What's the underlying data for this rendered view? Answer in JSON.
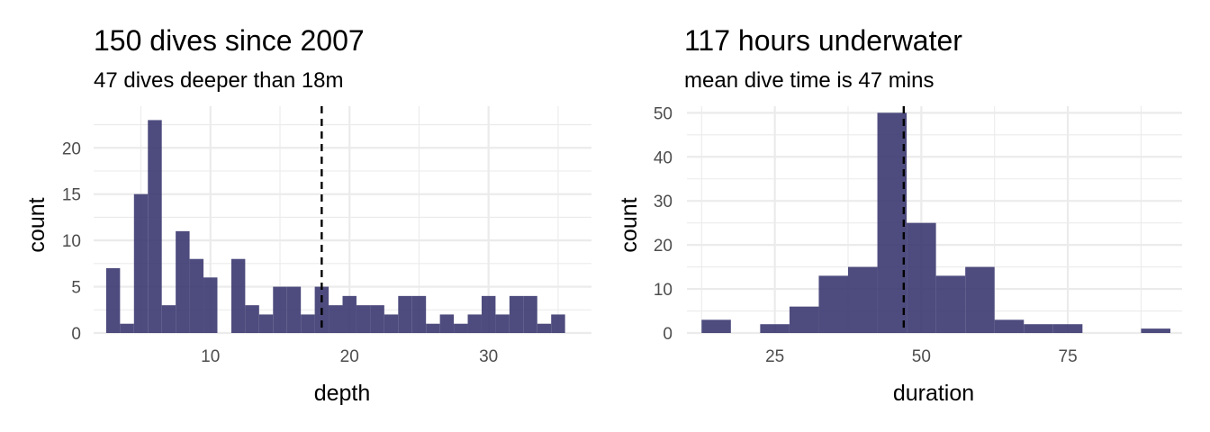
{
  "chart_data": [
    {
      "type": "bar",
      "title": "150 dives since 2007",
      "subtitle": "47 dives deeper than 18m",
      "xlabel": "depth",
      "ylabel": "count",
      "xlim": [
        1.6,
        37.4
      ],
      "ylim": [
        0,
        24.5
      ],
      "x_ticks": [
        10,
        20,
        30
      ],
      "y_ticks": [
        0,
        5,
        10,
        15,
        20
      ],
      "grid": true,
      "bin_width": 1,
      "x": [
        3,
        4,
        5,
        6,
        7,
        8,
        9,
        10,
        11,
        12,
        13,
        14,
        15,
        16,
        17,
        18,
        19,
        20,
        21,
        22,
        23,
        24,
        25,
        26,
        27,
        28,
        29,
        30,
        31,
        32,
        33,
        34,
        35
      ],
      "values": [
        7,
        1,
        15,
        23,
        3,
        11,
        8,
        6,
        0,
        8,
        3,
        2,
        5,
        5,
        2,
        5,
        3,
        4,
        3,
        3,
        2,
        4,
        4,
        1,
        2,
        1,
        2,
        4,
        2,
        4,
        4,
        1,
        2
      ],
      "vline": 18,
      "bar_color": "#3b3870",
      "vline_color": "#000000"
    },
    {
      "type": "bar",
      "title": "117 hours underwater",
      "subtitle": "mean dive time is 47 mins",
      "xlabel": "duration",
      "ylabel": "count",
      "xlim": [
        10,
        94.5
      ],
      "ylim": [
        0,
        51.5
      ],
      "x_ticks": [
        25,
        50,
        75
      ],
      "y_ticks": [
        0,
        10,
        20,
        30,
        40,
        50
      ],
      "grid": true,
      "bin_width": 5,
      "x": [
        15,
        20,
        25,
        30,
        35,
        40,
        45,
        50,
        55,
        60,
        65,
        70,
        75,
        80,
        85,
        90
      ],
      "values": [
        3,
        0,
        2,
        6,
        13,
        15,
        50,
        25,
        13,
        15,
        3,
        2,
        2,
        0,
        0,
        1
      ],
      "vline": 47,
      "bar_color": "#3b3870",
      "vline_color": "#000000"
    }
  ]
}
